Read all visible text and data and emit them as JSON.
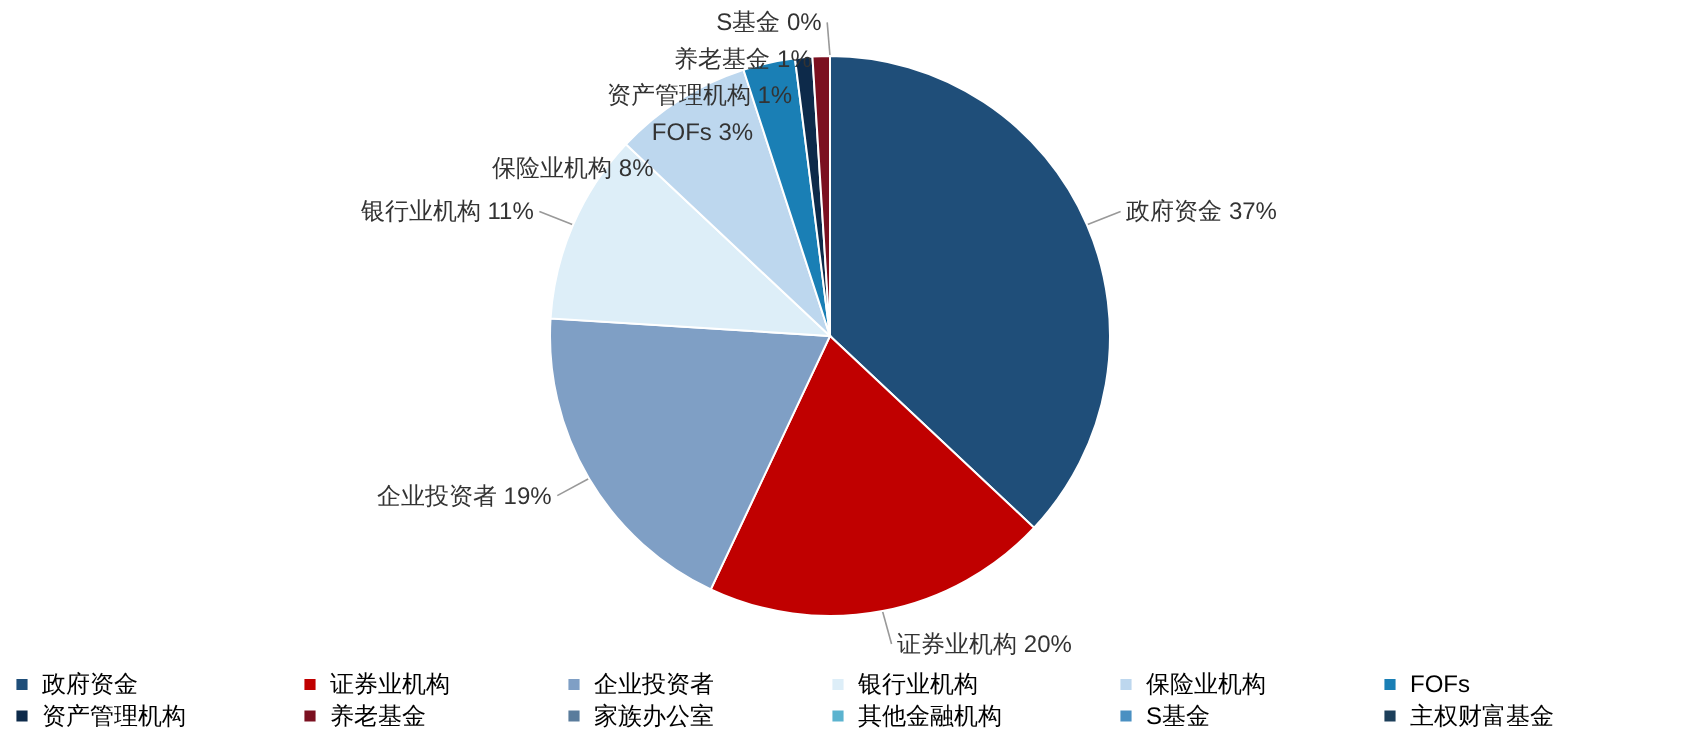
{
  "chart_data": {
    "type": "pie",
    "categories": [
      "政府资金",
      "证券业机构",
      "企业投资者",
      "银行业机构",
      "保险业机构",
      "FOFs",
      "资产管理机构",
      "养老基金",
      "家族办公室",
      "其他金融机构",
      "S基金",
      "主权财富基金"
    ],
    "values": [
      37,
      20,
      19,
      11,
      8,
      3,
      1,
      1,
      0,
      0,
      0,
      0
    ],
    "value_labels": [
      "37%",
      "20%",
      "19%",
      "11%",
      "8%",
      "3%",
      "1%",
      "1%",
      null,
      null,
      "0%",
      null
    ],
    "colors": [
      "#1f4e79",
      "#c00000",
      "#7f9fc5",
      "#ddeef8",
      "#bdd7ee",
      "#1a7fb5",
      "#0d2a4a",
      "#7b1020",
      "#5a7c9c",
      "#5bb3cf",
      "#4a90c2",
      "#1c3f5a"
    ],
    "legend": "bottom"
  }
}
